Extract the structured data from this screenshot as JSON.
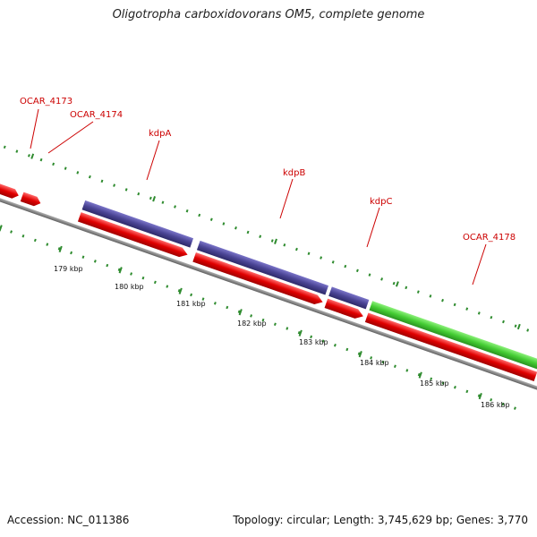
{
  "title": "Oligotropha carboxidovorans OM5, complete genome",
  "footer": {
    "accession": "Accession: NC_011386",
    "summary": "Topology: circular; Length: 3,745,629 bp; Genes: 3,770"
  },
  "colors": {
    "backbone": "#808080",
    "gc_skew": "#2e8b2e",
    "cds": "#e00000",
    "gene_blue": "#4a4494",
    "gene_green": "#44cc33",
    "label": "#cc0000"
  },
  "genes": [
    {
      "name": "OCAR_4173"
    },
    {
      "name": "OCAR_4174"
    },
    {
      "name": "kdpA"
    },
    {
      "name": "kdpB"
    },
    {
      "name": "kdpC"
    },
    {
      "name": "OCAR_4178"
    }
  ],
  "ticks": [
    "179 kbp",
    "180 kbp",
    "181 kbp",
    "182 kbp",
    "183 kbp",
    "184 kbp",
    "185 kbp",
    "186 kbp"
  ]
}
